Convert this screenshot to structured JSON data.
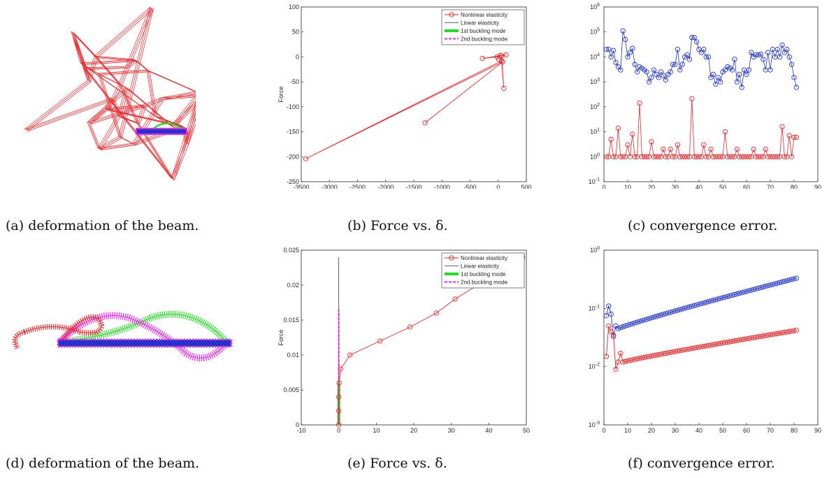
{
  "figure": {
    "captions": {
      "a": "(a) deformation of the beam.",
      "b": "(b) Force vs. δ.",
      "c": "(c) convergence error.",
      "d": "(d) deformation of the beam.",
      "e": "(e) Force vs. δ.",
      "f": "(f) convergence error."
    },
    "legend": [
      "Nonlinear elasticity",
      "Linear elasticity",
      "1st buckling mode",
      "2nd buckling mode"
    ],
    "colors": {
      "nonlinear": "#e8262a",
      "linear": "#333333",
      "mode1": "#22dd22",
      "mode2": "#ee22ee",
      "blue": "#2233cc"
    }
  },
  "chart_data": [
    {
      "type": "line",
      "panel": "b",
      "xlabel": "δ",
      "ylabel": "Force",
      "xlim": [
        -3500,
        500
      ],
      "ylim": [
        -250,
        100
      ],
      "xticks": [
        "-3500",
        "-3000",
        "-2500",
        "-2000",
        "-1500",
        "-1000",
        "-500",
        "0",
        "500"
      ],
      "yticks": [
        "-250",
        "-200",
        "-150",
        "-100",
        "-50",
        "0",
        "50",
        "100"
      ],
      "legend_position": "top-right",
      "series": [
        {
          "name": "Nonlinear elasticity",
          "points": [
            [
              -1300,
              -132
            ],
            [
              80,
              -10
            ],
            [
              -3420,
              -204
            ],
            [
              60,
              -8
            ],
            [
              100,
              -63
            ],
            [
              60,
              2
            ],
            [
              140,
              4
            ],
            [
              -280,
              -3
            ],
            [
              -20,
              0
            ],
            [
              40,
              3
            ],
            [
              10,
              -5
            ]
          ]
        }
      ]
    },
    {
      "type": "line",
      "panel": "c",
      "xlim": [
        0,
        90
      ],
      "ylim": [
        0.1,
        1000000
      ],
      "log_y": true,
      "xticks": [
        "0",
        "10",
        "20",
        "30",
        "40",
        "50",
        "60",
        "70",
        "80",
        "90"
      ],
      "yticks": [
        "10-1",
        "100",
        "101",
        "102",
        "103",
        "104",
        "105",
        "106"
      ],
      "series": [
        {
          "color": "blue",
          "values": [
            20000,
            20000,
            10000,
            18000,
            6000,
            4000,
            3000,
            110000,
            50000,
            10000,
            15000,
            22000,
            5000,
            2500,
            4000,
            3500,
            3000,
            2500,
            1000,
            1500,
            3000,
            2000,
            1500,
            2500,
            1800,
            1200,
            2000,
            2500,
            5000,
            5000,
            20000,
            3000,
            5000,
            10000,
            12000,
            8000,
            60000,
            60000,
            40000,
            20000,
            15000,
            20000,
            10000,
            10000,
            1500,
            2000,
            800,
            1500,
            1000,
            2500,
            3000,
            4000,
            3500,
            3000,
            8000,
            1000,
            2000,
            600,
            3000,
            2000,
            3000,
            15000,
            10000,
            12000,
            12000,
            13000,
            8000,
            3000,
            15000,
            3000,
            20000,
            10000,
            20000,
            10000,
            30000,
            15000,
            20000,
            10000,
            5000,
            1500,
            600
          ]
        },
        {
          "color": "nonlinear",
          "values": [
            1,
            1,
            5,
            1,
            1,
            14,
            1,
            1,
            1,
            3,
            1,
            8,
            1,
            1,
            140,
            1,
            1,
            1,
            1,
            4,
            1,
            1,
            1,
            1,
            2,
            1,
            1,
            2,
            1,
            1,
            3,
            1,
            1,
            1,
            1,
            1,
            210,
            1,
            1,
            1,
            1,
            3,
            1,
            1,
            2,
            1,
            1,
            1,
            1,
            1,
            10,
            1,
            1,
            1,
            1,
            2,
            1,
            1,
            1,
            1,
            1,
            1,
            2,
            1,
            1,
            1,
            1,
            2,
            1,
            1,
            1,
            1,
            1,
            1,
            16,
            1,
            1,
            7,
            1,
            6,
            6
          ]
        }
      ]
    },
    {
      "type": "line",
      "panel": "e",
      "xlabel": "δ",
      "ylabel": "Force",
      "xlim": [
        -10,
        50
      ],
      "ylim": [
        0,
        0.025
      ],
      "xticks": [
        "-10",
        "0",
        "10",
        "20",
        "30",
        "40",
        "50"
      ],
      "yticks": [
        "0",
        "0.005",
        "0.01",
        "0.015",
        "0.02",
        "0.025"
      ],
      "legend_position": "top-right",
      "series": [
        {
          "name": "Nonlinear elasticity",
          "points": [
            [
              0,
              0
            ],
            [
              0,
              0.002
            ],
            [
              0,
              0.004
            ],
            [
              0.1,
              0.006
            ],
            [
              0.5,
              0.008
            ],
            [
              3,
              0.01
            ],
            [
              11,
              0.012
            ],
            [
              19,
              0.014
            ],
            [
              26,
              0.016
            ],
            [
              31,
              0.018
            ],
            [
              49,
              0.024
            ]
          ]
        },
        {
          "name": "Linear elasticity",
          "points": [
            [
              0,
              0
            ],
            [
              0,
              0.024
            ]
          ]
        },
        {
          "name": "1st buckling mode",
          "points": [
            [
              0,
              0
            ],
            [
              0,
              0.006
            ]
          ]
        },
        {
          "name": "2nd buckling mode",
          "points": [
            [
              0,
              0
            ],
            [
              0,
              0.0165
            ]
          ]
        }
      ]
    },
    {
      "type": "line",
      "panel": "f",
      "xlim": [
        0,
        90
      ],
      "ylim": [
        0.001,
        1
      ],
      "log_y": true,
      "xticks": [
        "0",
        "10",
        "20",
        "30",
        "40",
        "50",
        "60",
        "70",
        "80",
        "90"
      ],
      "yticks": [
        "10-3",
        "10-2",
        "10-1",
        "100"
      ],
      "series": [
        {
          "color": "blue",
          "x_start": 1,
          "x_end": 81,
          "first": [
            0.075,
            0.11,
            0.08,
            0.033,
            0.05
          ],
          "from": 0.045,
          "to": 0.33
        },
        {
          "color": "nonlinear",
          "x_start": 1,
          "x_end": 81,
          "first": [
            0.015,
            0.05,
            0.04,
            0.035,
            0.009,
            0.012,
            0.017
          ],
          "from": 0.012,
          "to": 0.042
        }
      ]
    }
  ]
}
